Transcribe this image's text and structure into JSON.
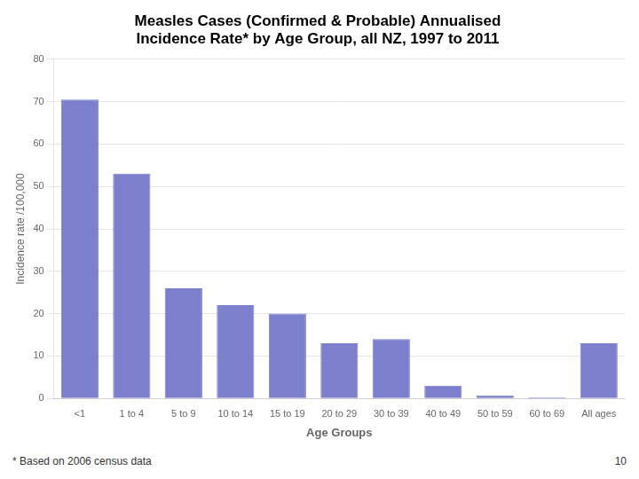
{
  "chart_data": {
    "type": "bar",
    "title": [
      "Measles Cases (Confirmed & Probable) Annualised",
      "Incidence Rate* by Age Group, all NZ, 1997 to 2011"
    ],
    "x_label": "Age Groups",
    "y_label": "Incidence rate /100,000",
    "categories": [
      "<1",
      "1 to 4",
      "5 to 9",
      "10 to 14",
      "15 to 19",
      "20 to 29",
      "30 to 39",
      "40 to 49",
      "50 to 59",
      "60 to 69",
      "All ages"
    ],
    "values": [
      70.5,
      53.0,
      26.0,
      22.0,
      20.0,
      13.0,
      14.0,
      3.0,
      0.7,
      0.3,
      13.0
    ],
    "color": "#7b7fcc",
    "ylim": [
      0,
      80
    ],
    "yticks": [
      0,
      10,
      20,
      30,
      40,
      50,
      60,
      70,
      80
    ],
    "grid": true,
    "annotations": [
      "* Based on 2006 census data",
      "10"
    ]
  }
}
